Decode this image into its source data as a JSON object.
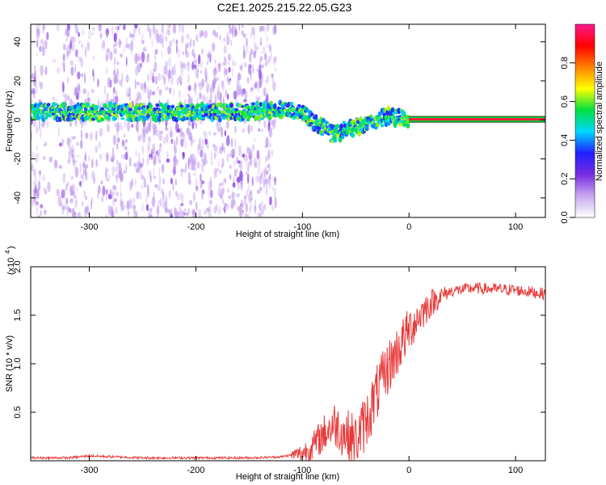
{
  "title": "C2E1.2025.215.22.05.G23",
  "chart_data": [
    {
      "type": "heatmap",
      "xlabel": "Height of straight line (km)",
      "ylabel": "Frequency (Hz)",
      "xlim": [
        -355,
        128
      ],
      "ylim": [
        -50,
        49
      ],
      "xticks": [
        -300,
        -200,
        -100,
        0,
        100
      ],
      "yticks": [
        -40,
        -20,
        0,
        20,
        40
      ],
      "colorbar": {
        "label": "Normalized spectral amplitude",
        "range": [
          0,
          1
        ],
        "ticks": [
          "0.0",
          "0.2",
          "0.4",
          "0.6",
          "0.8"
        ],
        "colormap": [
          "#ffffff",
          "#c8a8f0",
          "#7a2be0",
          "#2020ff",
          "#00d8ff",
          "#00e040",
          "#ffff00",
          "#ff8000",
          "#ff0000",
          "#ff1a8c"
        ]
      },
      "ridge": {
        "x": [
          -355,
          -300,
          -250,
          -200,
          -150,
          -130,
          -110,
          -100,
          -90,
          -80,
          -70,
          -60,
          -50,
          -40,
          -30,
          -20,
          -10,
          0,
          20,
          60,
          100,
          128
        ],
        "y": [
          4,
          4,
          4,
          4,
          4,
          5,
          5,
          3,
          -1,
          -4,
          -8,
          -5,
          -4,
          -2,
          0,
          2,
          1,
          1,
          0.3,
          0.3,
          0.3,
          0.3
        ]
      },
      "noise_region_xlim": [
        -355,
        -125
      ]
    },
    {
      "type": "line",
      "xlabel": "Height of straight line (km)",
      "ylabel": "SNR (10 * v/v)",
      "scale_label": "(x10",
      "scale_exponent": "4",
      "xlim": [
        -355,
        128
      ],
      "ylim": [
        0,
        2.0
      ],
      "xticks": [
        -300,
        -200,
        -100,
        0,
        100
      ],
      "yticks": [
        "0.5",
        "1.0",
        "1.5",
        "2.0"
      ],
      "color": "#e83a3a",
      "series": [
        {
          "x": [
            -355,
            -320,
            -300,
            -250,
            -200,
            -150,
            -120,
            -100,
            -90,
            -80,
            -70,
            -60,
            -50,
            -40,
            -30,
            -20,
            -10,
            0,
            10,
            20,
            30,
            40,
            60,
            80,
            100,
            128
          ],
          "y": [
            0.03,
            0.03,
            0.05,
            0.03,
            0.03,
            0.03,
            0.04,
            0.08,
            0.15,
            0.28,
            0.38,
            0.28,
            0.2,
            0.42,
            0.7,
            0.95,
            1.15,
            1.35,
            1.5,
            1.62,
            1.7,
            1.75,
            1.78,
            1.77,
            1.76,
            1.72
          ]
        }
      ]
    }
  ]
}
